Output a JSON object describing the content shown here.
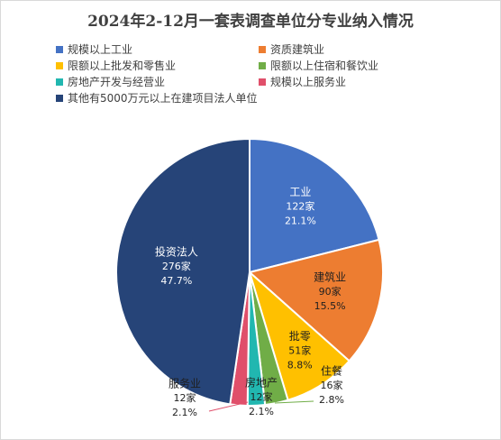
{
  "chart_data": {
    "type": "pie",
    "title": "2024年2-12月一套表调查单位分专业纳入情况",
    "legend_placement": "top",
    "slices": [
      {
        "legend": "规模以上工业",
        "name": "工业",
        "count": "122家",
        "value": 21.1,
        "pct": "21.1%",
        "color": "#4472c4",
        "label_color": "#ffffff"
      },
      {
        "legend": "资质建筑业",
        "name": "建筑业",
        "count": "90家",
        "value": 15.5,
        "pct": "15.5%",
        "color": "#ed7d31",
        "label_color": "#1f1f1f"
      },
      {
        "legend": "限额以上批发和零售业",
        "name": "批零",
        "count": "51家",
        "value": 8.8,
        "pct": "8.8%",
        "color": "#ffc000",
        "label_color": "#1f1f1f"
      },
      {
        "legend": "限额以上住宿和餐饮业",
        "name": "住餐",
        "count": "16家",
        "value": 2.8,
        "pct": "2.8%",
        "color": "#70ad47",
        "label_color": "#1f1f1f"
      },
      {
        "legend": "房地产开发与经营业",
        "name": "房地产",
        "count": "12家",
        "value": 2.1,
        "pct": "2.1%",
        "color": "#21b7b0",
        "label_color": "#1f1f1f"
      },
      {
        "legend": "规模以上服务业",
        "name": "服务业",
        "count": "12家",
        "value": 2.1,
        "pct": "2.1%",
        "color": "#e04f6a",
        "label_color": "#1f1f1f"
      },
      {
        "legend": "其他有5000万元以上在建项目法人单位",
        "name": "投资法人",
        "count": "276家",
        "value": 47.7,
        "pct": "47.7%",
        "color": "#264478",
        "label_color": "#ffffff"
      }
    ]
  }
}
